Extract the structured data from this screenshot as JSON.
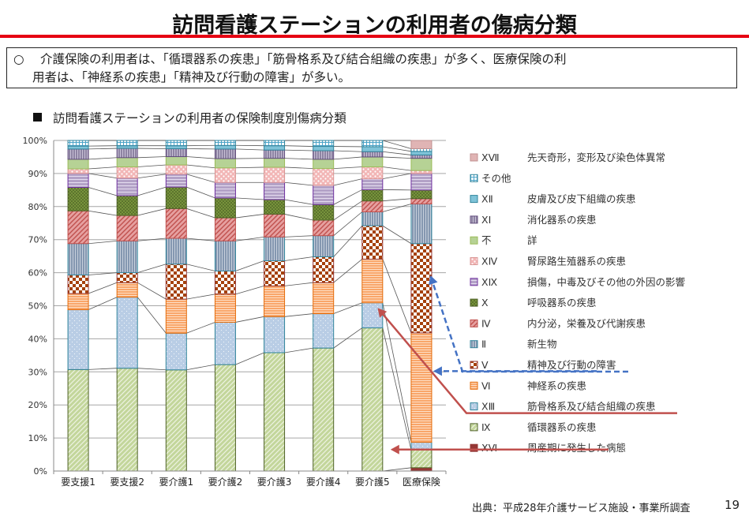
{
  "page": {
    "title": "訪問看護ステーションの利用者の傷病分類",
    "summary_bullet": "○",
    "summary_line1": "介護保険の利用者は、「循環器系の疾患」「筋骨格系及び結合組織の疾患」が多く、医療保険の利",
    "summary_line2": "用者は、「神経系の疾患」「精神及び行動の障害」が多い。",
    "chart_heading_marker": "■",
    "chart_heading": "訪問看護ステーションの利用者の保険制度別傷病分類",
    "source": "出典：平成28年介護サービス施設・事業所調査",
    "page_number": "19"
  },
  "chart_data": {
    "type": "bar",
    "stacked": true,
    "percent_stacked": true,
    "title": "訪問看護ステーションの利用者の保険制度別傷病分類",
    "xlabel": "",
    "ylabel": "",
    "ylim": [
      0,
      100
    ],
    "yticks": [
      "0%",
      "10%",
      "20%",
      "30%",
      "40%",
      "50%",
      "60%",
      "70%",
      "80%",
      "90%",
      "100%"
    ],
    "grid": true,
    "legend_position": "right",
    "categories": [
      "要支援1",
      "要支援2",
      "要介護1",
      "要介護2",
      "要介護3",
      "要介護4",
      "要介護5",
      "医療保険"
    ],
    "series": [
      {
        "code": "ⅩⅥ",
        "name": "周産期に発生した病態",
        "color": "#953735",
        "pattern": "solid",
        "values": [
          0,
          0,
          0,
          0,
          0,
          0,
          0,
          1.0
        ]
      },
      {
        "code": "Ⅸ",
        "name": "循環器系の疾患",
        "color": "#c3d69b",
        "stroke": "#4f6228",
        "pattern": "diag",
        "values": [
          30.7,
          31.1,
          30.6,
          32.2,
          35.8,
          37.2,
          43.3,
          5.4
        ]
      },
      {
        "code": "ⅩⅢ",
        "name": "筋骨格系及び結合組織の疾患",
        "color": "#b9cde5",
        "stroke": "#31859c",
        "pattern": "dots-light",
        "values": [
          18.1,
          21.5,
          11.1,
          12.8,
          10.9,
          10.4,
          7.6,
          2.3
        ]
      },
      {
        "code": "Ⅵ",
        "name": "神経系の疾患",
        "color": "#f9a66a",
        "stroke": "#e46c0a",
        "pattern": "hstripe",
        "values": [
          4.9,
          4.4,
          10.3,
          8.5,
          9.3,
          9.4,
          13.2,
          33.1
        ]
      },
      {
        "code": "Ⅴ",
        "name": "精神及び行動の障害",
        "color": "#a5410c",
        "stroke": "#943634",
        "pattern": "checker",
        "values": [
          5.6,
          3.0,
          10.6,
          7.0,
          7.6,
          7.8,
          10.1,
          27.0
        ]
      },
      {
        "code": "Ⅱ",
        "name": "新生物",
        "color": "#8497b0",
        "stroke": "#31859c",
        "pattern": "vstripe",
        "values": [
          9.5,
          9.6,
          7.8,
          9.1,
          7.2,
          6.4,
          4.2,
          12.0
        ]
      },
      {
        "code": "Ⅳ",
        "name": "内分泌，栄養及び代謝疾患",
        "color": "#e6a0a0",
        "stroke": "#c0504d",
        "pattern": "diag-red",
        "values": [
          9.9,
          7.7,
          9.0,
          7.0,
          6.9,
          4.7,
          3.3,
          1.6
        ]
      },
      {
        "code": "Ⅹ",
        "name": "呼吸器系の疾患",
        "color": "#77933c",
        "stroke": "#4f6228",
        "pattern": "dots-dark",
        "values": [
          7.1,
          6.0,
          6.5,
          6.0,
          4.4,
          4.7,
          3.4,
          2.6
        ]
      },
      {
        "code": "ⅩⅨ",
        "name": "損傷，中毒及びその他の外因の影響",
        "color": "#b3a2c7",
        "stroke": "#7030a0",
        "pattern": "hstripe-purple",
        "values": [
          4.2,
          5.3,
          3.9,
          4.7,
          5.2,
          5.8,
          3.3,
          5.0
        ]
      },
      {
        "code": "ⅩⅣ",
        "name": "腎尿路生殖器系の疾患",
        "color": "#f2b6b6",
        "stroke": "#d99694",
        "pattern": "dots-pink",
        "values": [
          1.4,
          3.4,
          2.8,
          4.4,
          4.6,
          5.1,
          3.6,
          0.9
        ]
      },
      {
        "code": "不",
        "name": "詳",
        "color": "#b6d295",
        "stroke": "#9bbb59",
        "pattern": "solid",
        "values": [
          2.9,
          2.8,
          2.5,
          2.8,
          2.7,
          2.8,
          3.0,
          3.7
        ]
      },
      {
        "code": "ⅩⅠ",
        "name": "消化器系の疾患",
        "color": "#8e84a3",
        "stroke": "#604a7b",
        "pattern": "vstripe-purple",
        "values": [
          3.1,
          2.8,
          2.4,
          2.9,
          2.5,
          2.6,
          1.6,
          1.0
        ]
      },
      {
        "code": "ⅩⅡ",
        "name": "皮膚及び皮下組織の疾患",
        "color": "#7fc3d8",
        "stroke": "#31859c",
        "pattern": "solid",
        "values": [
          0.9,
          0.8,
          0.9,
          1.1,
          1.3,
          1.3,
          1.5,
          1.1
        ]
      },
      {
        "code": "その他",
        "name": "",
        "color": "#9dc3e6",
        "stroke": "#31859c",
        "pattern": "grid",
        "values": [
          1.7,
          1.6,
          1.6,
          1.5,
          1.6,
          1.8,
          1.9,
          0.8
        ]
      },
      {
        "code": "ⅩⅦ",
        "name": "先天奇形，変形及び染色体異常",
        "color": "#e0b4b4",
        "stroke": "#c09090",
        "pattern": "solid",
        "values": [
          0,
          0,
          0,
          0,
          0,
          0,
          0,
          2.5
        ]
      }
    ],
    "legend_order": [
      "ⅩⅦ",
      "その他",
      "ⅩⅡ",
      "ⅩⅠ",
      "不",
      "ⅩⅣ",
      "ⅩⅨ",
      "Ⅹ",
      "Ⅳ",
      "Ⅱ",
      "Ⅴ",
      "Ⅵ",
      "ⅩⅢ",
      "Ⅸ",
      "ⅩⅥ"
    ],
    "annotations": [
      {
        "type": "dashed-arrow",
        "color": "#4472c4",
        "from_legend": "Ⅴ",
        "to_category": "医療保険",
        "to_series": "Ⅴ"
      },
      {
        "type": "dashed-arrow",
        "color": "#4472c4",
        "from_legend": "Ⅵ",
        "to_category": "医療保険",
        "to_series": "Ⅵ"
      },
      {
        "type": "arrow",
        "color": "#c0504d",
        "from_legend": "ⅩⅢ",
        "to_category": "要介護5",
        "to_series": "ⅩⅢ"
      },
      {
        "type": "arrow",
        "color": "#c0504d",
        "from_legend": "Ⅸ",
        "to_category": "要介護5",
        "to_series": "Ⅸ"
      }
    ]
  }
}
